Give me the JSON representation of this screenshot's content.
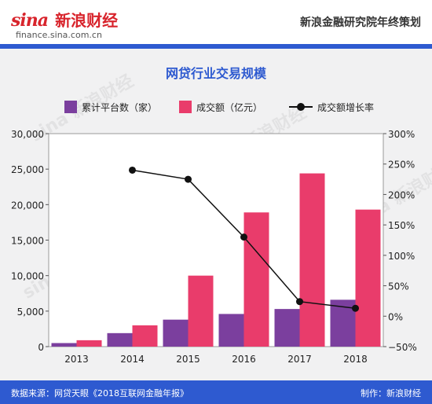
{
  "header": {
    "logo": "sina",
    "name": "新浪财经",
    "url": "finance.sina.com.cn",
    "right": "新浪金融研究院年终策划"
  },
  "title": "网贷行业交易规模",
  "footer": {
    "source": "数据来源：网贷天眼《2018互联网金融年报》",
    "credit": "制作：新浪财经"
  },
  "watermark": "sina 新浪财经",
  "colors": {
    "accent": "#2e5ad0",
    "platforms": "#7b3f9e",
    "volume": "#e93c6b",
    "growth": "#111111",
    "brand": "#d8242c"
  },
  "chart_data": {
    "type": "bar",
    "categories": [
      "2013",
      "2014",
      "2015",
      "2016",
      "2017",
      "2018"
    ],
    "series": [
      {
        "name": "累计平台数（家）",
        "type": "bar",
        "axis": "left",
        "values": [
          500,
          1900,
          3800,
          4600,
          5300,
          6600
        ]
      },
      {
        "name": "成交额（亿元）",
        "type": "bar",
        "axis": "left",
        "values": [
          900,
          3000,
          10000,
          18900,
          24400,
          19300
        ]
      },
      {
        "name": "成交额增长率",
        "type": "line",
        "axis": "right",
        "values": [
          null,
          240,
          225,
          130,
          24,
          13
        ]
      }
    ],
    "y_left": {
      "min": 0,
      "max": 30000,
      "ticks": [
        "0",
        "5,000",
        "10,000",
        "15,000",
        "20,000",
        "25,000",
        "30,000"
      ]
    },
    "y_right": {
      "min": -50,
      "max": 300,
      "ticks": [
        "−50%",
        "0%",
        "50%",
        "100%",
        "150%",
        "200%",
        "250%",
        "300%"
      ]
    },
    "legend_position": "top",
    "grid": false
  }
}
